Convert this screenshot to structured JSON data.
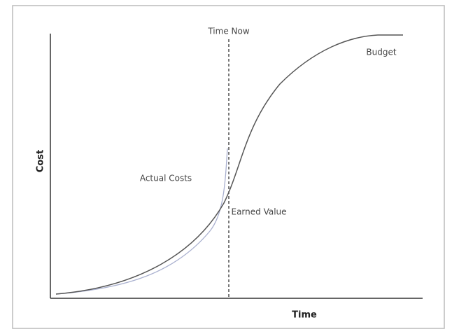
{
  "title_marker": "Time Now",
  "curves": {
    "budget": "Budget",
    "actual_costs": "Actual Costs",
    "earned_value": "Earned Value"
  },
  "axes": {
    "y": "Cost",
    "x": "Time"
  }
}
